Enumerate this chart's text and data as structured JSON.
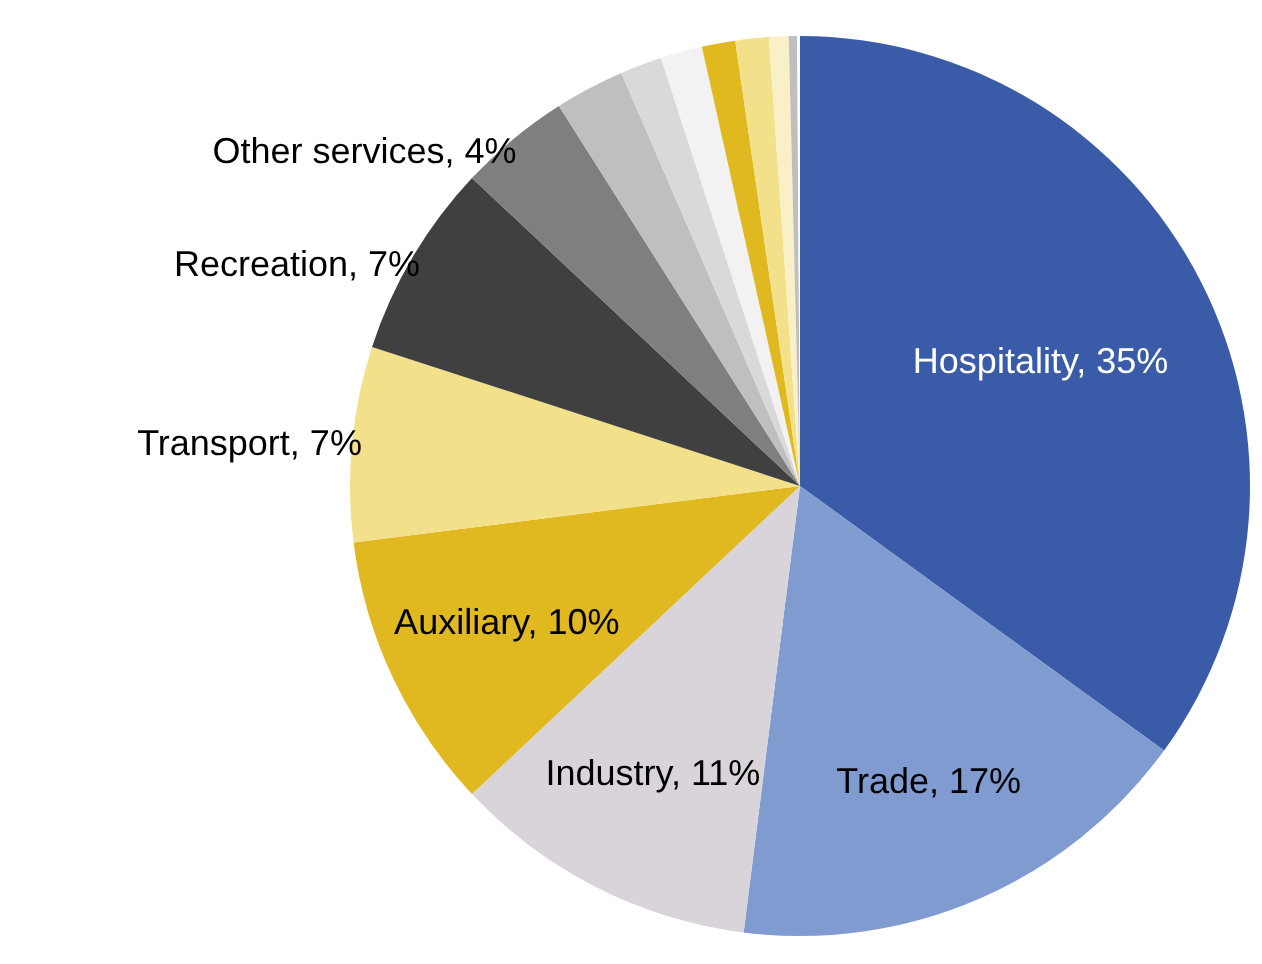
{
  "chart_data": {
    "type": "pie",
    "categories": [
      "Hospitality, 35%",
      "Trade, 17%",
      "Industry, 11%",
      "Auxiliary, 10%",
      "Transport, 7%",
      "Recreation, 7%",
      "Other services, 4%",
      null,
      null,
      null,
      null,
      null,
      null,
      null,
      null
    ],
    "values": [
      35,
      17,
      11,
      10,
      7,
      7,
      4,
      2.5,
      1.5,
      1.5,
      1.2,
      1.2,
      0.7,
      0.3,
      0.1
    ],
    "colors": [
      "#3a5ba8",
      "#7f9bd0",
      "#d9d4d9",
      "#e0b820",
      "#f3e08a",
      "#404040",
      "#7f7f7f",
      "#bfbfbf",
      "#d9d9d9",
      "#f2f2f2",
      "#e0b820",
      "#f3e08a",
      "#faf0c8",
      "#bfbfbf",
      "#ffffff"
    ],
    "legend": false
  }
}
